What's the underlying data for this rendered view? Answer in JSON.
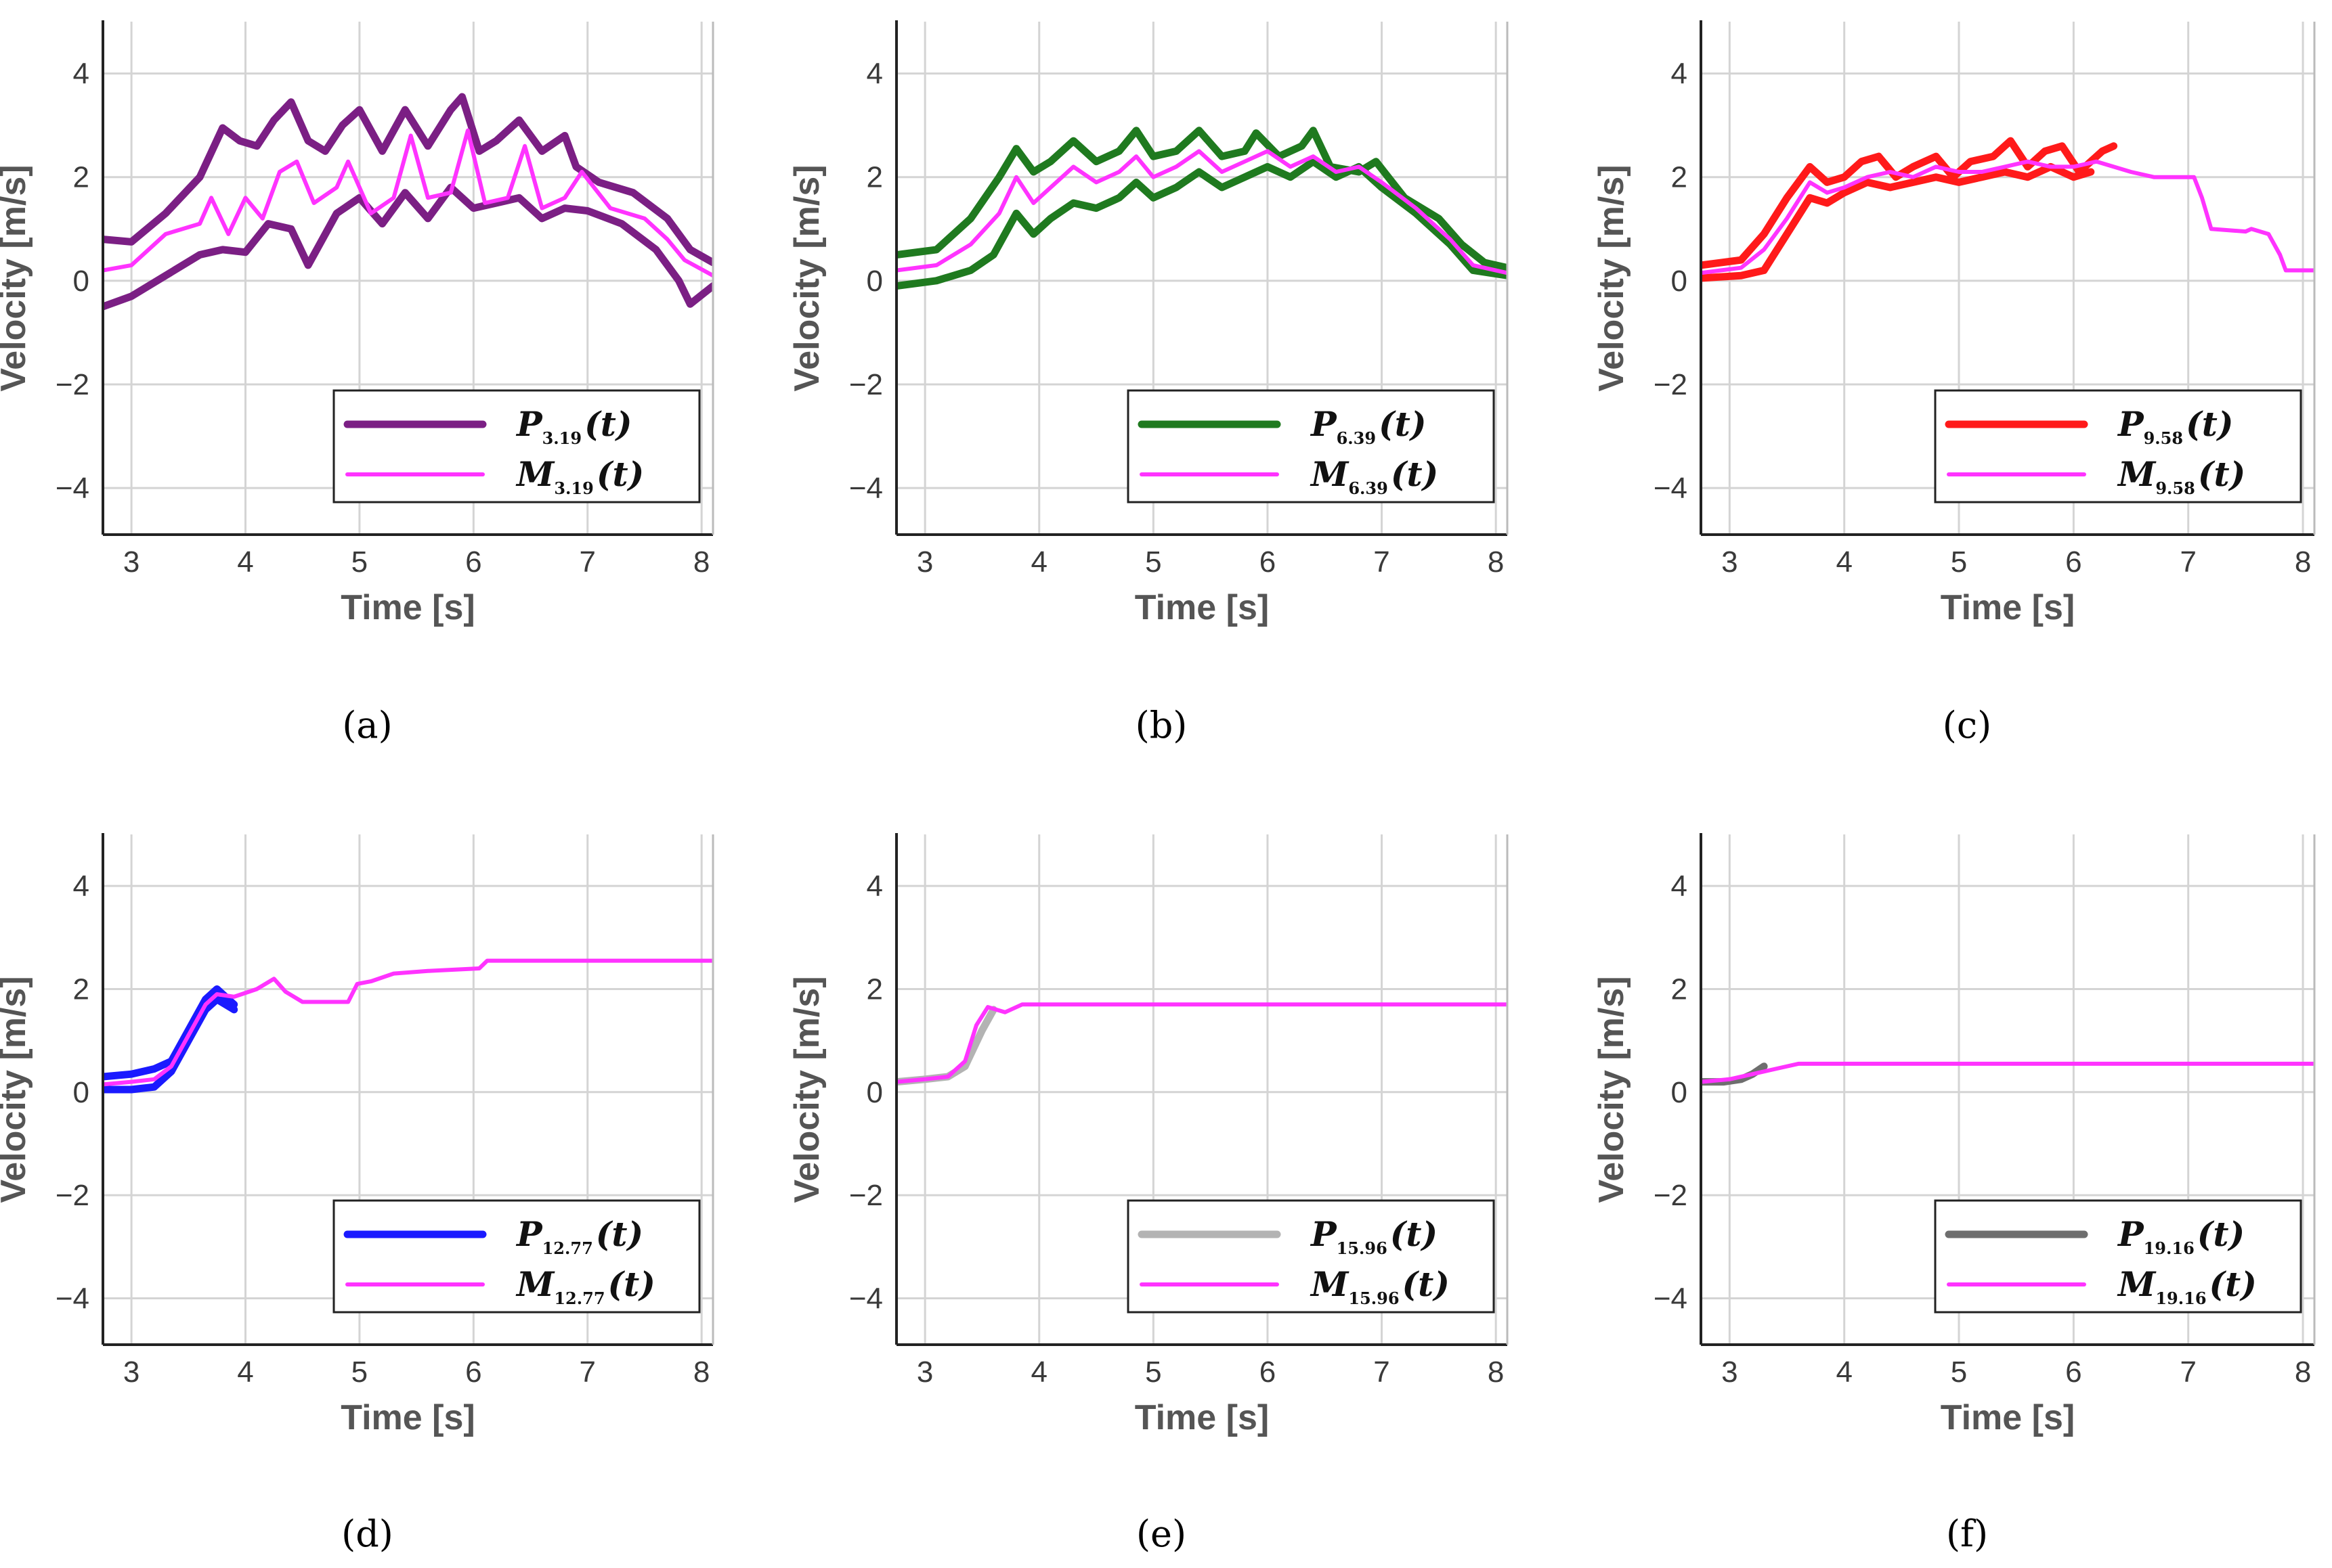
{
  "chart_data": [
    {
      "panel": "a",
      "caption": "(a)",
      "type": "line",
      "xlabel": "Time [s]",
      "ylabel": "Velocity [m/s]",
      "xlim": [
        2.75,
        8.1
      ],
      "ylim": [
        -4.9,
        5.0
      ],
      "xticks": [
        "3",
        "4",
        "5",
        "6",
        "7",
        "8"
      ],
      "yticks": [
        "4",
        "2",
        "0",
        "−2",
        "−4"
      ],
      "grid": true,
      "legend_position": "bottom-right",
      "series": [
        {
          "name": "P upper band",
          "legend": "P",
          "subscript": "3.19",
          "arg": "(t)",
          "color": "#7b1f84",
          "role": "band",
          "x": [
            2.75,
            3.0,
            3.3,
            3.6,
            3.8,
            3.95,
            4.1,
            4.25,
            4.4,
            4.55,
            4.7,
            4.85,
            5.0,
            5.2,
            5.4,
            5.6,
            5.8,
            5.9,
            6.05,
            6.2,
            6.4,
            6.6,
            6.8,
            6.9,
            7.1,
            7.4,
            7.7,
            7.9,
            8.1
          ],
          "y": [
            0.8,
            0.75,
            1.3,
            2.0,
            2.95,
            2.7,
            2.6,
            3.1,
            3.45,
            2.7,
            2.5,
            3.0,
            3.3,
            2.5,
            3.3,
            2.6,
            3.3,
            3.55,
            2.5,
            2.7,
            3.1,
            2.5,
            2.8,
            2.2,
            1.9,
            1.7,
            1.2,
            0.6,
            0.35
          ]
        },
        {
          "name": "P lower band",
          "legend": "",
          "subscript": "",
          "arg": "",
          "color": "#7b1f84",
          "role": "band",
          "x": [
            2.75,
            3.0,
            3.3,
            3.6,
            3.8,
            4.0,
            4.2,
            4.4,
            4.55,
            4.8,
            5.0,
            5.2,
            5.4,
            5.6,
            5.8,
            6.0,
            6.2,
            6.4,
            6.6,
            6.8,
            7.0,
            7.3,
            7.6,
            7.8,
            7.9,
            8.1
          ],
          "y": [
            -0.5,
            -0.3,
            0.1,
            0.5,
            0.6,
            0.55,
            1.1,
            1.0,
            0.3,
            1.3,
            1.6,
            1.1,
            1.7,
            1.2,
            1.8,
            1.4,
            1.5,
            1.6,
            1.2,
            1.4,
            1.35,
            1.1,
            0.6,
            0.0,
            -0.45,
            -0.1
          ]
        },
        {
          "name": "M",
          "legend": "M",
          "subscript": "3.19",
          "arg": "(t)",
          "color": "#ff33ff",
          "role": "model",
          "x": [
            2.75,
            3.0,
            3.3,
            3.6,
            3.7,
            3.85,
            4.0,
            4.15,
            4.3,
            4.45,
            4.6,
            4.8,
            4.9,
            5.1,
            5.3,
            5.45,
            5.6,
            5.8,
            5.95,
            6.1,
            6.3,
            6.45,
            6.6,
            6.8,
            6.95,
            7.2,
            7.5,
            7.7,
            7.85,
            8.1
          ],
          "y": [
            0.2,
            0.3,
            0.9,
            1.1,
            1.6,
            0.9,
            1.6,
            1.2,
            2.1,
            2.3,
            1.5,
            1.8,
            2.3,
            1.3,
            1.6,
            2.8,
            1.6,
            1.7,
            2.9,
            1.5,
            1.6,
            2.6,
            1.4,
            1.6,
            2.1,
            1.4,
            1.2,
            0.8,
            0.4,
            0.1
          ]
        }
      ]
    },
    {
      "panel": "b",
      "caption": "(b)",
      "type": "line",
      "xlabel": "Time [s]",
      "ylabel": "Velocity [m/s]",
      "xlim": [
        2.75,
        8.1
      ],
      "ylim": [
        -4.9,
        5.0
      ],
      "xticks": [
        "3",
        "4",
        "5",
        "6",
        "7",
        "8"
      ],
      "yticks": [
        "4",
        "2",
        "0",
        "−2",
        "−4"
      ],
      "grid": true,
      "legend_position": "bottom-right",
      "series": [
        {
          "name": "P upper band",
          "legend": "P",
          "subscript": "6.39",
          "arg": "(t)",
          "color": "#1f7a1f",
          "role": "band",
          "x": [
            2.75,
            3.1,
            3.4,
            3.65,
            3.8,
            3.95,
            4.1,
            4.3,
            4.5,
            4.7,
            4.85,
            5.0,
            5.2,
            5.4,
            5.6,
            5.8,
            5.9,
            6.1,
            6.3,
            6.4,
            6.55,
            6.8,
            6.95,
            7.2,
            7.5,
            7.7,
            7.9,
            8.1
          ],
          "y": [
            0.5,
            0.6,
            1.2,
            2.0,
            2.55,
            2.1,
            2.3,
            2.7,
            2.3,
            2.5,
            2.9,
            2.4,
            2.5,
            2.9,
            2.4,
            2.5,
            2.85,
            2.4,
            2.6,
            2.9,
            2.2,
            2.1,
            2.3,
            1.6,
            1.2,
            0.7,
            0.35,
            0.25
          ]
        },
        {
          "name": "P lower band",
          "legend": "",
          "subscript": "",
          "arg": "",
          "color": "#1f7a1f",
          "role": "band",
          "x": [
            2.75,
            3.1,
            3.4,
            3.6,
            3.8,
            3.95,
            4.1,
            4.3,
            4.5,
            4.7,
            4.85,
            5.0,
            5.2,
            5.4,
            5.6,
            5.8,
            6.0,
            6.2,
            6.4,
            6.6,
            6.8,
            7.0,
            7.3,
            7.6,
            7.8,
            8.1
          ],
          "y": [
            -0.1,
            0.0,
            0.2,
            0.5,
            1.3,
            0.9,
            1.2,
            1.5,
            1.4,
            1.6,
            1.9,
            1.6,
            1.8,
            2.1,
            1.8,
            2.0,
            2.2,
            2.0,
            2.3,
            2.0,
            2.2,
            1.8,
            1.3,
            0.7,
            0.2,
            0.1
          ]
        },
        {
          "name": "M",
          "legend": "M",
          "subscript": "6.39",
          "arg": "(t)",
          "color": "#ff33ff",
          "role": "model",
          "x": [
            2.75,
            3.1,
            3.4,
            3.65,
            3.8,
            3.95,
            4.1,
            4.3,
            4.5,
            4.7,
            4.85,
            5.0,
            5.2,
            5.4,
            5.6,
            5.8,
            6.0,
            6.2,
            6.4,
            6.6,
            6.8,
            7.0,
            7.3,
            7.6,
            7.8,
            8.1
          ],
          "y": [
            0.2,
            0.3,
            0.7,
            1.3,
            2.0,
            1.5,
            1.8,
            2.2,
            1.9,
            2.1,
            2.4,
            2.0,
            2.2,
            2.5,
            2.1,
            2.3,
            2.5,
            2.2,
            2.4,
            2.1,
            2.2,
            1.9,
            1.4,
            0.8,
            0.3,
            0.15
          ]
        }
      ]
    },
    {
      "panel": "c",
      "caption": "(c)",
      "type": "line",
      "xlabel": "Time [s]",
      "ylabel": "Velocity [m/s]",
      "xlim": [
        2.75,
        8.1
      ],
      "ylim": [
        -4.9,
        5.0
      ],
      "xticks": [
        "3",
        "4",
        "5",
        "6",
        "7",
        "8"
      ],
      "yticks": [
        "4",
        "2",
        "0",
        "−2",
        "−4"
      ],
      "grid": true,
      "legend_position": "bottom-right",
      "series": [
        {
          "name": "P upper band",
          "legend": "P",
          "subscript": "9.58",
          "arg": "(t)",
          "color": "#ff1a1a",
          "role": "band",
          "x": [
            2.75,
            3.1,
            3.3,
            3.5,
            3.7,
            3.85,
            4.0,
            4.15,
            4.3,
            4.45,
            4.6,
            4.8,
            4.95,
            5.1,
            5.3,
            5.45,
            5.6,
            5.75,
            5.9,
            6.05,
            6.25,
            6.35
          ],
          "y": [
            0.3,
            0.4,
            0.9,
            1.6,
            2.2,
            1.9,
            2.0,
            2.3,
            2.4,
            2.0,
            2.2,
            2.4,
            2.0,
            2.3,
            2.4,
            2.7,
            2.2,
            2.5,
            2.6,
            2.1,
            2.5,
            2.6
          ]
        },
        {
          "name": "P lower band",
          "legend": "",
          "subscript": "",
          "arg": "",
          "color": "#ff1a1a",
          "role": "band",
          "x": [
            2.75,
            3.1,
            3.3,
            3.5,
            3.7,
            3.85,
            4.0,
            4.2,
            4.4,
            4.6,
            4.8,
            5.0,
            5.2,
            5.4,
            5.6,
            5.8,
            6.0,
            6.15
          ],
          "y": [
            0.05,
            0.1,
            0.2,
            0.9,
            1.6,
            1.5,
            1.7,
            1.9,
            1.8,
            1.9,
            2.0,
            1.9,
            2.0,
            2.1,
            2.0,
            2.2,
            2.0,
            2.1
          ]
        },
        {
          "name": "M",
          "legend": "M",
          "subscript": "9.58",
          "arg": "(t)",
          "color": "#ff33ff",
          "role": "model",
          "x": [
            2.75,
            3.1,
            3.3,
            3.5,
            3.7,
            3.85,
            4.0,
            4.2,
            4.4,
            4.6,
            4.8,
            5.0,
            5.2,
            5.4,
            5.6,
            5.8,
            6.0,
            6.2,
            6.5,
            6.7,
            7.05,
            7.12,
            7.2,
            7.5,
            7.55,
            7.7,
            7.8,
            7.85,
            8.1
          ],
          "y": [
            0.15,
            0.25,
            0.6,
            1.2,
            1.9,
            1.7,
            1.8,
            2.0,
            2.1,
            2.0,
            2.2,
            2.1,
            2.1,
            2.2,
            2.3,
            2.2,
            2.2,
            2.3,
            2.1,
            2.0,
            2.0,
            1.6,
            1.0,
            0.95,
            1.0,
            0.9,
            0.5,
            0.2,
            0.2
          ]
        }
      ]
    },
    {
      "panel": "d",
      "caption": "(d)",
      "type": "line",
      "xlabel": "Time [s]",
      "ylabel": "Velocity [m/s]",
      "xlim": [
        2.75,
        8.1
      ],
      "ylim": [
        -4.9,
        5.0
      ],
      "xticks": [
        "3",
        "4",
        "5",
        "6",
        "7",
        "8"
      ],
      "yticks": [
        "4",
        "2",
        "0",
        "−2",
        "−4"
      ],
      "grid": true,
      "legend_position": "bottom-right",
      "series": [
        {
          "name": "P upper band",
          "legend": "P",
          "subscript": "12.77",
          "arg": "(t)",
          "color": "#1a1aff",
          "role": "band",
          "x": [
            2.75,
            3.0,
            3.2,
            3.35,
            3.5,
            3.65,
            3.75,
            3.9
          ],
          "y": [
            0.3,
            0.35,
            0.45,
            0.6,
            1.2,
            1.8,
            2.0,
            1.7
          ]
        },
        {
          "name": "P lower band",
          "legend": "",
          "subscript": "",
          "arg": "",
          "color": "#1a1aff",
          "role": "band",
          "x": [
            2.75,
            3.0,
            3.2,
            3.35,
            3.5,
            3.65,
            3.75,
            3.9
          ],
          "y": [
            0.05,
            0.05,
            0.1,
            0.4,
            1.0,
            1.6,
            1.8,
            1.6
          ]
        },
        {
          "name": "M",
          "legend": "M",
          "subscript": "12.77",
          "arg": "(t)",
          "color": "#ff33ff",
          "role": "model",
          "x": [
            2.75,
            3.0,
            3.2,
            3.35,
            3.5,
            3.65,
            3.75,
            3.9,
            4.1,
            4.25,
            4.35,
            4.5,
            4.9,
            4.98,
            5.1,
            5.3,
            5.6,
            6.05,
            6.12,
            8.1
          ],
          "y": [
            0.15,
            0.2,
            0.25,
            0.5,
            1.1,
            1.7,
            1.9,
            1.85,
            2.0,
            2.2,
            1.95,
            1.75,
            1.75,
            2.1,
            2.15,
            2.3,
            2.35,
            2.4,
            2.55,
            2.55
          ]
        }
      ]
    },
    {
      "panel": "e",
      "caption": "(e)",
      "type": "line",
      "xlabel": "Time [s]",
      "ylabel": "Velocity [m/s]",
      "xlim": [
        2.75,
        8.1
      ],
      "ylim": [
        -4.9,
        5.0
      ],
      "xticks": [
        "3",
        "4",
        "5",
        "6",
        "7",
        "8"
      ],
      "yticks": [
        "4",
        "2",
        "0",
        "−2",
        "−4"
      ],
      "grid": true,
      "legend_position": "bottom-right",
      "series": [
        {
          "name": "P band",
          "legend": "P",
          "subscript": "15.96",
          "arg": "(t)",
          "color": "#b3b3b3",
          "role": "band",
          "x": [
            2.75,
            3.0,
            3.2,
            3.35,
            3.5,
            3.6
          ],
          "y": [
            0.2,
            0.25,
            0.3,
            0.5,
            1.2,
            1.6
          ]
        },
        {
          "name": "M",
          "legend": "M",
          "subscript": "15.96",
          "arg": "(t)",
          "color": "#ff33ff",
          "role": "model",
          "x": [
            2.75,
            3.0,
            3.2,
            3.35,
            3.45,
            3.55,
            3.7,
            3.85,
            8.1
          ],
          "y": [
            0.2,
            0.25,
            0.3,
            0.6,
            1.3,
            1.65,
            1.55,
            1.7,
            1.7
          ]
        }
      ]
    },
    {
      "panel": "f",
      "caption": "(f)",
      "type": "line",
      "xlabel": "Time [s]",
      "ylabel": "Velocity [m/s]",
      "xlim": [
        2.75,
        8.1
      ],
      "ylim": [
        -4.9,
        5.0
      ],
      "xticks": [
        "3",
        "4",
        "5",
        "6",
        "7",
        "8"
      ],
      "yticks": [
        "4",
        "2",
        "0",
        "−2",
        "−4"
      ],
      "grid": true,
      "legend_position": "bottom-right",
      "series": [
        {
          "name": "P band",
          "legend": "P",
          "subscript": "19.16",
          "arg": "(t)",
          "color": "#6e6e6e",
          "role": "band",
          "x": [
            2.75,
            2.95,
            3.1,
            3.2,
            3.3
          ],
          "y": [
            0.2,
            0.2,
            0.25,
            0.35,
            0.5
          ]
        },
        {
          "name": "M",
          "legend": "M",
          "subscript": "19.16",
          "arg": "(t)",
          "color": "#ff33ff",
          "role": "model",
          "x": [
            2.75,
            3.0,
            3.2,
            3.4,
            3.6,
            8.1
          ],
          "y": [
            0.2,
            0.25,
            0.35,
            0.45,
            0.55,
            0.55
          ]
        }
      ]
    }
  ]
}
